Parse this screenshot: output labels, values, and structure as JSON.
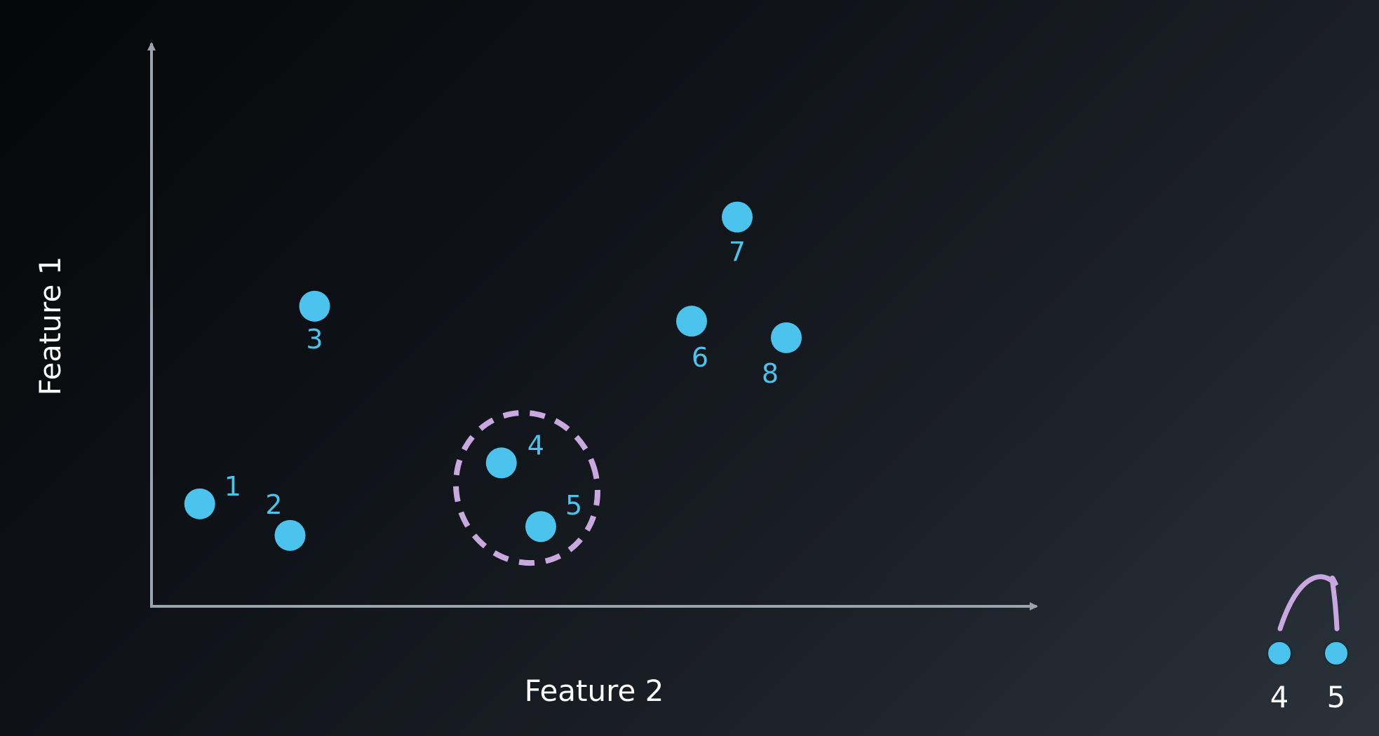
{
  "chart_data": {
    "type": "scatter",
    "title": "",
    "xlabel": "Feature 2",
    "ylabel": "Feature 1",
    "xlim": [
      0,
      100
    ],
    "ylim": [
      0,
      100
    ],
    "grid": false,
    "point_color": "#4cc3ec",
    "cluster_color": "#c9a8e0",
    "points": [
      {
        "label": "1",
        "x": 5.5,
        "y": 18.5
      },
      {
        "label": "2",
        "x": 15.8,
        "y": 12.8
      },
      {
        "label": "3",
        "x": 18.6,
        "y": 54.2
      },
      {
        "label": "4",
        "x": 39.9,
        "y": 25.9
      },
      {
        "label": "5",
        "x": 44.4,
        "y": 14.4
      },
      {
        "label": "6",
        "x": 61.6,
        "y": 51.5
      },
      {
        "label": "7",
        "x": 66.8,
        "y": 70.3
      },
      {
        "label": "8",
        "x": 72.4,
        "y": 48.5
      }
    ],
    "highlighted_cluster": [
      "4",
      "5"
    ],
    "dendrogram": {
      "leaves": [
        "4",
        "5"
      ]
    }
  }
}
